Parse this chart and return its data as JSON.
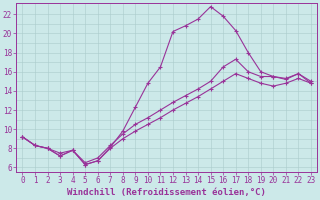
{
  "xlabel": "Windchill (Refroidissement éolien,°C)",
  "ylabel": "",
  "bg_color": "#cce9e9",
  "line_color": "#993399",
  "grid_color": "#aacccc",
  "xlim": [
    -0.5,
    23.5
  ],
  "ylim": [
    5.5,
    23.2
  ],
  "xticks": [
    0,
    1,
    2,
    3,
    4,
    5,
    6,
    7,
    8,
    9,
    10,
    11,
    12,
    13,
    14,
    15,
    16,
    17,
    18,
    19,
    20,
    21,
    22,
    23
  ],
  "yticks": [
    6,
    8,
    10,
    12,
    14,
    16,
    18,
    20,
    22
  ],
  "line1_x": [
    0,
    1,
    2,
    3,
    4,
    5,
    6,
    7,
    8,
    9,
    10,
    11,
    12,
    13,
    14,
    15,
    16,
    17,
    18,
    19,
    20,
    21,
    22,
    23
  ],
  "line1_y": [
    9.2,
    8.3,
    8.0,
    7.2,
    7.8,
    6.3,
    6.7,
    8.1,
    9.8,
    12.3,
    14.8,
    16.5,
    20.2,
    20.8,
    21.5,
    22.8,
    21.8,
    20.3,
    18.0,
    16.0,
    15.5,
    15.2,
    15.8,
    14.8
  ],
  "line2_x": [
    0,
    1,
    2,
    3,
    4,
    5,
    6,
    7,
    8,
    9,
    10,
    11,
    12,
    13,
    14,
    15,
    16,
    17,
    18,
    19,
    20,
    21,
    22,
    23
  ],
  "line2_y": [
    9.2,
    8.3,
    8.0,
    7.5,
    7.8,
    6.5,
    7.0,
    8.3,
    9.5,
    10.5,
    11.2,
    12.0,
    12.8,
    13.5,
    14.2,
    15.0,
    16.5,
    17.3,
    16.0,
    15.5,
    15.5,
    15.3,
    15.8,
    15.0
  ],
  "line3_x": [
    0,
    1,
    2,
    3,
    4,
    5,
    6,
    7,
    8,
    9,
    10,
    11,
    12,
    13,
    14,
    15,
    16,
    17,
    18,
    19,
    20,
    21,
    22,
    23
  ],
  "line3_y": [
    9.2,
    8.3,
    8.0,
    7.2,
    7.8,
    6.3,
    6.7,
    8.0,
    9.0,
    9.8,
    10.5,
    11.2,
    12.0,
    12.7,
    13.4,
    14.2,
    15.0,
    15.8,
    15.3,
    14.8,
    14.5,
    14.8,
    15.3,
    14.8
  ],
  "xlabel_fontsize": 6.5,
  "tick_fontsize": 5.5,
  "marker": "+",
  "markersize": 3.5,
  "linewidth": 0.8
}
